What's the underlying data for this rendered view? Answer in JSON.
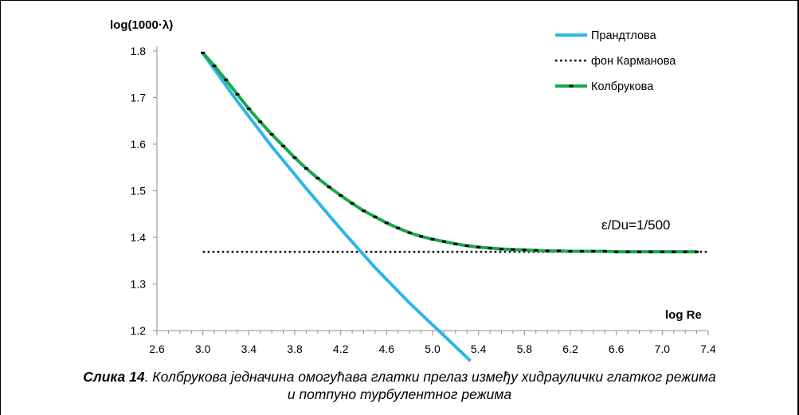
{
  "chart_data": {
    "type": "line",
    "ylabel": "log(1000·λ)",
    "xlabel": "log Re",
    "xlim": [
      2.6,
      7.4
    ],
    "ylim": [
      1.2,
      1.8
    ],
    "x_ticks": [
      "2.6",
      "3.0",
      "3.4",
      "3.8",
      "4.2",
      "4.6",
      "5.0",
      "5.4",
      "5.8",
      "6.2",
      "6.6",
      "7.0",
      "7.4"
    ],
    "y_ticks": [
      "1.2",
      "1.3",
      "1.4",
      "1.5",
      "1.6",
      "1.7",
      "1.8"
    ],
    "grid": false,
    "legend_position": "top-right",
    "annotation": "ε/Du=1/500",
    "series": [
      {
        "name": "Прандтлова",
        "color": "#2eb4ea",
        "style": "solid",
        "x": [
          3.0,
          3.3,
          3.6,
          3.9,
          4.2,
          4.5,
          4.8,
          5.1,
          5.33
        ],
        "y": [
          1.795,
          1.692,
          1.595,
          1.505,
          1.418,
          1.335,
          1.259,
          1.189,
          1.135
        ]
      },
      {
        "name": "фон Карманова",
        "color": "#000000",
        "style": "dotted",
        "x": [
          3.0,
          7.4
        ],
        "y": [
          1.369,
          1.369
        ]
      },
      {
        "name": "Колбрукова",
        "color": "#18a84a",
        "style": "solid-with-markers",
        "x": [
          3.0,
          3.1,
          3.2,
          3.3,
          3.4,
          3.5,
          3.6,
          3.7,
          3.8,
          3.9,
          4.0,
          4.1,
          4.2,
          4.3,
          4.4,
          4.5,
          4.6,
          4.7,
          4.8,
          4.9,
          5.0,
          5.1,
          5.2,
          5.3,
          5.4,
          5.5,
          5.6,
          5.7,
          5.8,
          5.9,
          6.0,
          6.1,
          6.2,
          6.3,
          6.4,
          6.5,
          6.6,
          6.7,
          6.8,
          6.9,
          7.0,
          7.1,
          7.2,
          7.3
        ],
        "y": [
          1.796,
          1.768,
          1.738,
          1.707,
          1.676,
          1.648,
          1.621,
          1.596,
          1.571,
          1.548,
          1.527,
          1.508,
          1.49,
          1.473,
          1.457,
          1.444,
          1.431,
          1.42,
          1.41,
          1.402,
          1.396,
          1.391,
          1.386,
          1.382,
          1.379,
          1.377,
          1.375,
          1.374,
          1.373,
          1.372,
          1.371,
          1.371,
          1.37,
          1.37,
          1.37,
          1.37,
          1.369,
          1.369,
          1.369,
          1.369,
          1.369,
          1.369,
          1.369,
          1.369
        ]
      }
    ]
  },
  "caption": {
    "label": "Слика 14",
    "line1": ". Колбрукова једначина омогућава глатки прелаз између хидраулички глатког режима",
    "line2": "и потпуно турбулентног режима"
  }
}
